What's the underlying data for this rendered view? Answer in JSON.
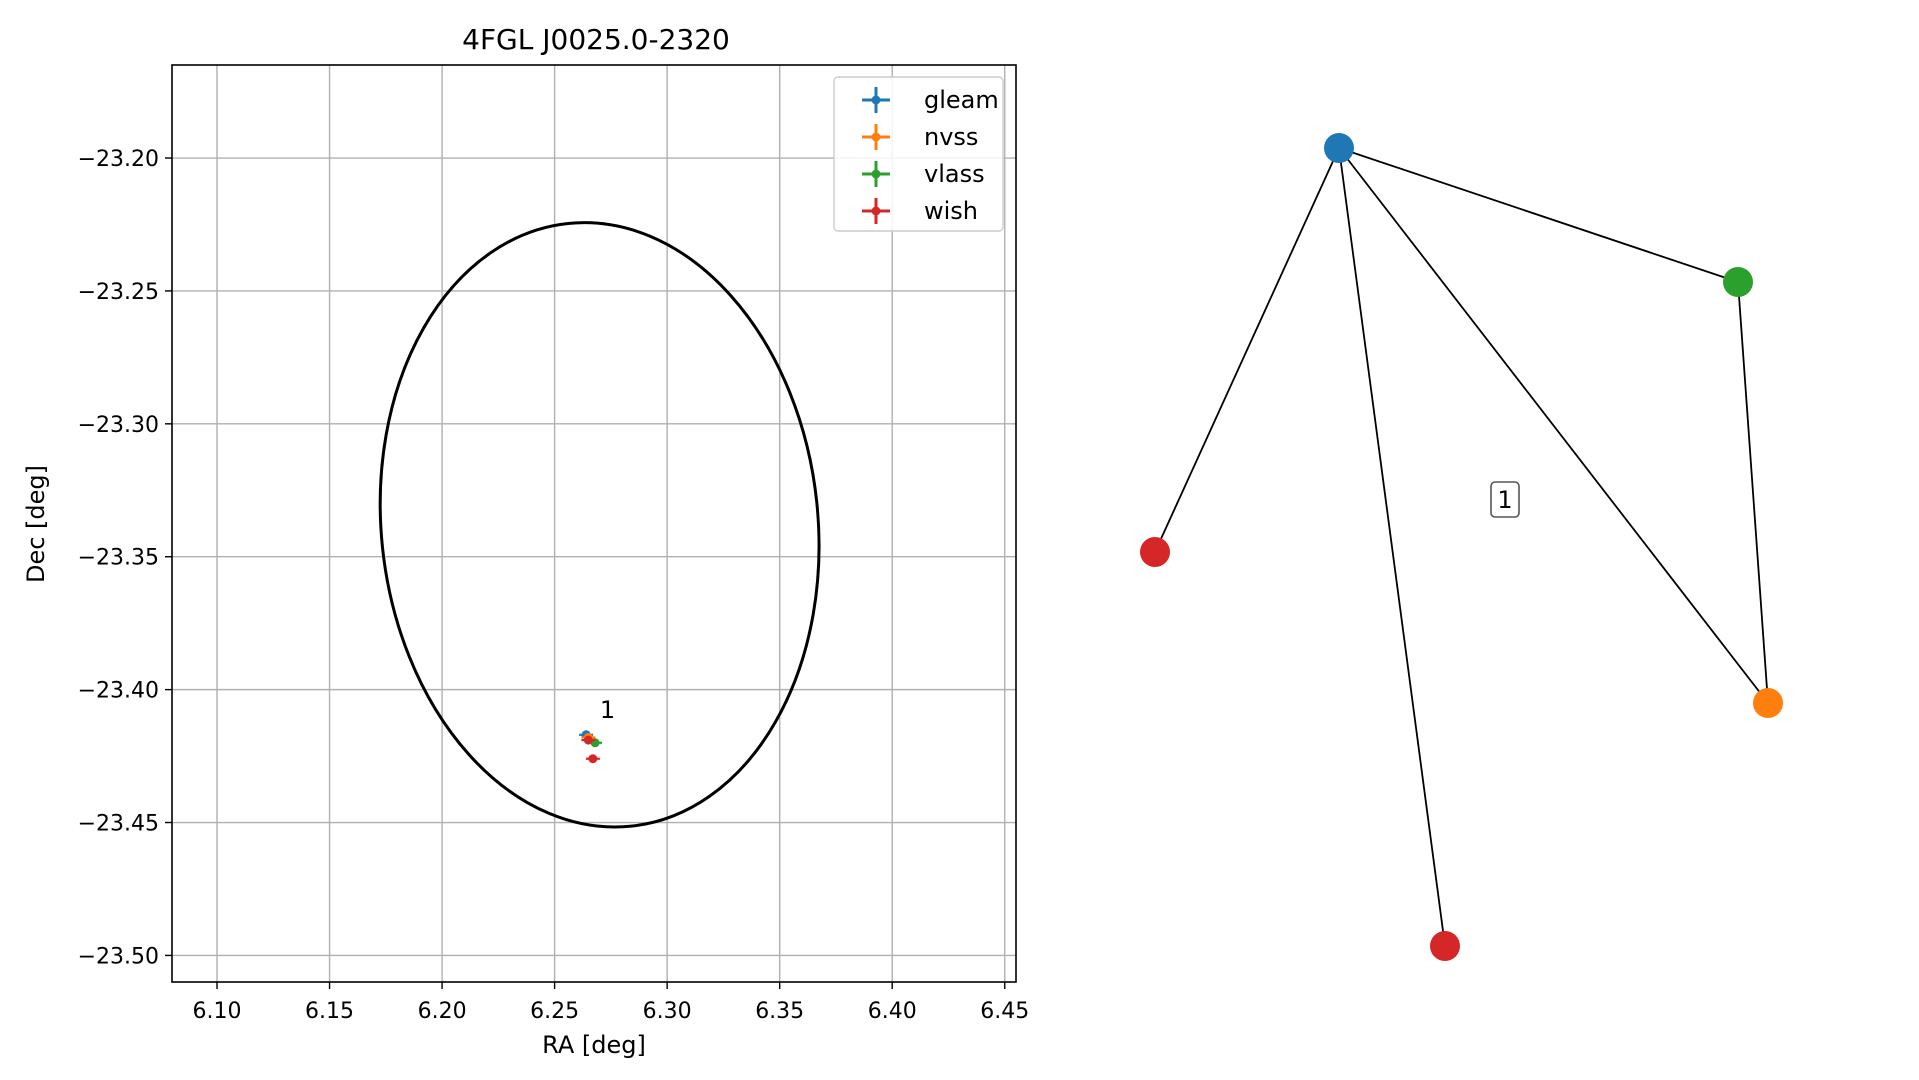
{
  "chart_data": [
    {
      "type": "scatter",
      "title": "4FGL J0025.0-2320",
      "xlabel": "RA [deg]",
      "ylabel": "Dec [deg]",
      "xlim": [
        6.08,
        6.455
      ],
      "ylim": [
        -23.51,
        -23.165
      ],
      "xticks": [
        6.1,
        6.15,
        6.2,
        6.25,
        6.3,
        6.35,
        6.4,
        6.45
      ],
      "xtick_labels": [
        "6.10",
        "6.15",
        "6.20",
        "6.25",
        "6.30",
        "6.35",
        "6.40",
        "6.45"
      ],
      "yticks": [
        -23.2,
        -23.25,
        -23.3,
        -23.35,
        -23.4,
        -23.45,
        -23.5
      ],
      "ytick_labels": [
        "−23.20",
        "−23.25",
        "−23.30",
        "−23.35",
        "−23.40",
        "−23.45",
        "−23.50"
      ],
      "grid": true,
      "legend_position": "top-right",
      "series": [
        {
          "name": "gleam",
          "color": "#1f77b4",
          "points": [
            {
              "x": 6.264,
              "y": -23.417
            }
          ]
        },
        {
          "name": "nvss",
          "color": "#ff7f0e",
          "points": [
            {
              "x": 6.265,
              "y": -23.418
            }
          ]
        },
        {
          "name": "vlass",
          "color": "#2ca02c",
          "points": [
            {
              "x": 6.268,
              "y": -23.42
            }
          ]
        },
        {
          "name": "wish",
          "color": "#d62728",
          "points": [
            {
              "x": 6.265,
              "y": -23.419
            },
            {
              "x": 6.267,
              "y": -23.426
            }
          ]
        }
      ],
      "ellipse": {
        "center": [
          6.27,
          -23.338
        ],
        "ra_semi_axis": 0.097,
        "dec_semi_axis": 0.114,
        "angle_deg": -6,
        "color": "#000000"
      },
      "annotations": [
        {
          "text": "1",
          "x": 6.267,
          "y": -23.413
        }
      ]
    },
    {
      "type": "graph",
      "nodes": [
        {
          "id": "gleam",
          "color": "#1f77b4"
        },
        {
          "id": "vlass",
          "color": "#2ca02c"
        },
        {
          "id": "nvss",
          "color": "#ff7f0e"
        },
        {
          "id": "wish-1",
          "color": "#d62728"
        },
        {
          "id": "wish-2",
          "color": "#d62728"
        }
      ],
      "edges": [
        [
          "gleam",
          "vlass"
        ],
        [
          "gleam",
          "nvss"
        ],
        [
          "gleam",
          "wish-1"
        ],
        [
          "gleam",
          "wish-2"
        ],
        [
          "vlass",
          "nvss"
        ]
      ],
      "component_label": "1"
    }
  ]
}
